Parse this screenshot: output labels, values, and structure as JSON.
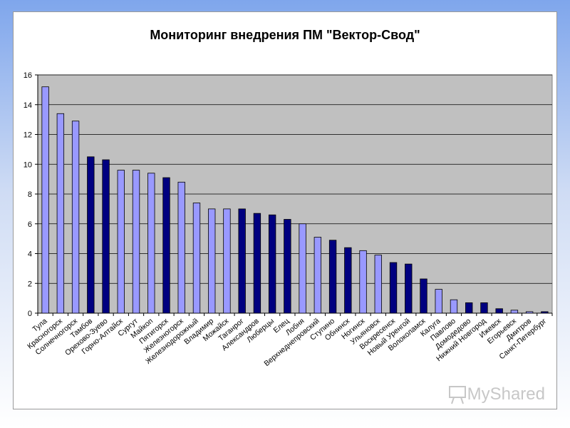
{
  "chart_data": {
    "type": "bar",
    "title": "Мониторинг внедрения ПМ \"Вектор-Свод\"",
    "xlabel": "",
    "ylabel": "",
    "ylim": [
      0,
      16
    ],
    "yticks": [
      0,
      2,
      4,
      6,
      8,
      10,
      12,
      14,
      16
    ],
    "grid": true,
    "legend": "none",
    "colors": {
      "light": "#9999ff",
      "dark": "#000080",
      "plot_bg": "#c0c0c0"
    },
    "categories": [
      "Тула",
      "Красногорск",
      "Солнечногорск",
      "Тамбов",
      "Орехово-Зуево",
      "Горно-Алтайск",
      "Сургут",
      "Майкоп",
      "Пятигорск",
      "Железногорск",
      "Железнодорожный",
      "Владимир",
      "Можайск",
      "Таганрог",
      "Александров",
      "Люберцы",
      "Елец",
      "Лобня",
      "Верхнеднепровский",
      "Ступино",
      "Обнинск",
      "Ногинск",
      "Ульяновск",
      "Воскресенск",
      "Новый Уренгой",
      "Волоколамск",
      "Калуга",
      "Павлово",
      "Домодедово",
      "Нижний Новгород",
      "Ижевск",
      "Егорьевск",
      "Дмитров",
      "Санкт-Петербург"
    ],
    "tick_labels": [
      "Тула",
      "Красногорск",
      "Солнечногорск",
      "Тамбов",
      "Орехово-Зуево",
      "Горно-Алтайск",
      "Сургут",
      "Майкоп",
      "Пятигорск",
      "Железногорск",
      "Железнодорожный",
      "Владимир",
      "Можайск",
      "Таганрог",
      "Александров",
      "Люберцы",
      "Елец",
      "Лобня",
      "Верхнеднепровский",
      "Ступино",
      "Обнинск",
      "Ногинск",
      "Ульяновск",
      "Воскресенск",
      "Новый Уренгой",
      "Волоколамск",
      "Калуга",
      "Павлово",
      "Домодедово",
      "Нижний Новгород",
      "Ижевск",
      "Егорьевск",
      "Дмитров",
      "Санкт-Петербург"
    ],
    "values": [
      15.2,
      13.4,
      12.9,
      10.5,
      10.3,
      9.6,
      9.6,
      9.4,
      9.1,
      8.8,
      7.4,
      7.0,
      7.0,
      7.0,
      6.7,
      6.6,
      6.3,
      6.0,
      5.1,
      4.9,
      4.4,
      4.2,
      3.9,
      3.4,
      3.3,
      2.3,
      1.6,
      0.9,
      0.7,
      0.7,
      0.3,
      0.2,
      0.1,
      0.1
    ],
    "bar_shades": [
      "light",
      "light",
      "light",
      "dark",
      "dark",
      "light",
      "light",
      "light",
      "dark",
      "light",
      "light",
      "light",
      "light",
      "dark",
      "dark",
      "dark",
      "dark",
      "light",
      "light",
      "dark",
      "dark",
      "light",
      "light",
      "dark",
      "dark",
      "dark",
      "light",
      "light",
      "dark",
      "dark",
      "dark",
      "light",
      "light",
      "dark"
    ]
  },
  "watermark": {
    "text": "MyShared"
  }
}
